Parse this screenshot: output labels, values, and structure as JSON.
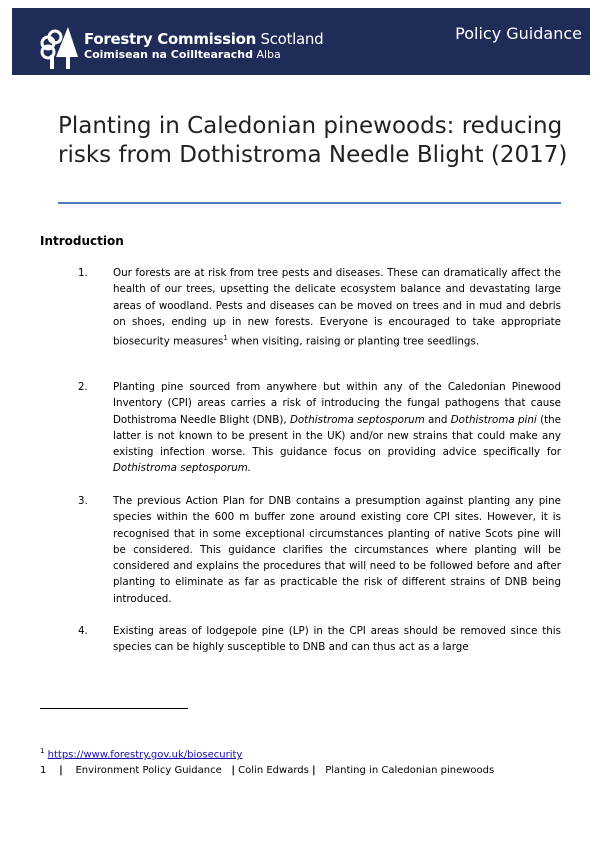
{
  "header": {
    "org_name_bold": "Forestry Commission",
    "org_name_light": "Scotland",
    "org_gaelic_bold": "Coimisean na Coilltearachd",
    "org_gaelic_light": "Alba",
    "doc_type": "Policy Guidance",
    "brand_color": "#1f2c58"
  },
  "title": "Planting in Caledonian pinewoods: reducing risks from Dothistroma Needle Blight (2017)",
  "section_heading": "Introduction",
  "paragraphs": [
    {
      "num": "1.",
      "segments": [
        "Our forests are at risk from tree pests and diseases. These can dramatically affect the health of our trees, upsetting the delicate ecosystem balance and devastating large areas of woodland. Pests and diseases can be moved on trees and in mud and debris on shoes, ending up in new forests. Everyone is encouraged to take appropriate biosecurity measures",
        "1",
        " when visiting, raising or planting tree seedlings."
      ]
    },
    {
      "num": "2.",
      "segments": [
        "Planting pine sourced from anywhere but within any of the Caledonian Pinewood Inventory (CPI) areas carries a risk of introducing the fungal pathogens that cause Dothistroma Needle Blight (DNB), ",
        "Dothistroma septosporum",
        " and ",
        "Dothistroma pini",
        " (the latter is not known to be present in the UK) and/or new strains that could make any existing infection worse. This guidance focus on providing advice specifically for ",
        "Dothistroma septosporum."
      ]
    },
    {
      "num": "3.",
      "text": "The previous Action Plan for DNB contains a presumption against planting any pine species within the 600 m buffer zone around existing core CPI sites. However, it is recognised that in some exceptional circumstances planting of native Scots pine will be considered. This guidance clarifies the circumstances where planting will be considered and explains the procedures that will need to be followed before and after planting to eliminate as far as practicable the risk of different strains of DNB being introduced."
    },
    {
      "num": "4.",
      "text": "Existing areas of lodgepole pine (LP) in the CPI areas should be removed since this species can be highly susceptible to DNB and can thus act as a large"
    }
  ],
  "footnote": {
    "marker": "1",
    "link": "https://www.forestry.gov.uk/biosecurity"
  },
  "footer": {
    "page": "1",
    "doc": "Environment Policy Guidance",
    "author": "Colin Edwards",
    "short_title": "Planting in Caledonian pinewoods"
  }
}
